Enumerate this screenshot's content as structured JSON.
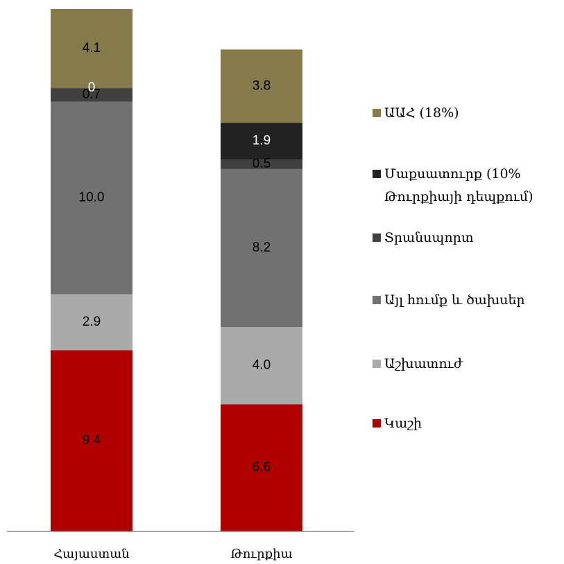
{
  "chart_data": {
    "type": "stacked_bar",
    "categories": [
      "Հայաստան",
      "Թուրքիա"
    ],
    "series": [
      {
        "name": "Կաշի",
        "color": "#b00000",
        "values": [
          9.4,
          6.6
        ],
        "value_labels": [
          "9.4",
          "6.6"
        ]
      },
      {
        "name": "Աշխատուժ",
        "color": "#aaaaaa",
        "values": [
          2.9,
          4.0
        ],
        "value_labels": [
          "2.9",
          "4.0"
        ]
      },
      {
        "name": "Այլ հումք և ծախսեր",
        "color": "#717171",
        "values": [
          10.0,
          8.2
        ],
        "value_labels": [
          "10.0",
          "8.2"
        ]
      },
      {
        "name": "Տրանսպորտ",
        "color": "#404040",
        "values": [
          0.7,
          0.5
        ]
      },
      {
        "name": "Մաքսատուրք (10% Թուրքիայի դեպքում)",
        "color": "#222222",
        "values": [
          0,
          1.9
        ]
      },
      {
        "name": "ԱԱՀ (18%)",
        "color": "#857a4c",
        "values": [
          4.1,
          3.8
        ]
      }
    ]
  }
}
